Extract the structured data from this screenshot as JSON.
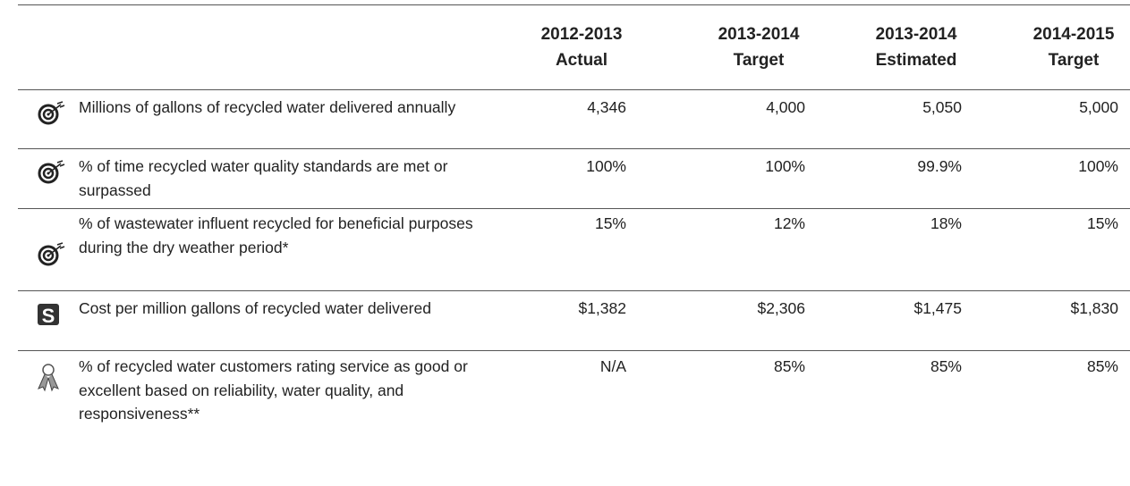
{
  "table": {
    "columns": [
      {
        "period": "2012-2013",
        "kind": "Actual"
      },
      {
        "period": "2013-2014",
        "kind": "Target"
      },
      {
        "period": "2013-2014",
        "kind": "Estimated"
      },
      {
        "period": "2014-2015",
        "kind": "Target"
      }
    ],
    "rows": [
      {
        "label": "Millions of gallons of recycled water delivered annually",
        "values": [
          "4,346",
          "4,000",
          "5,050",
          "5,000"
        ]
      },
      {
        "label": "% of time recycled water quality standards are met or surpassed",
        "values": [
          "100%",
          "100%",
          "99.9%",
          "100%"
        ]
      },
      {
        "label": "% of wastewater influent recycled for beneficial purposes during the dry weather period*",
        "values": [
          "15%",
          "12%",
          "18%",
          "15%"
        ]
      },
      {
        "label": "Cost per million gallons of recycled water delivered",
        "values": [
          "$1,382",
          "$2,306",
          "$1,475",
          "$1,830"
        ]
      },
      {
        "label": "% of recycled water customers rating service as good or excellent based on reliability, water quality, and responsiveness**",
        "values": [
          "N/A",
          "85%",
          "85%",
          "85%"
        ]
      }
    ]
  }
}
